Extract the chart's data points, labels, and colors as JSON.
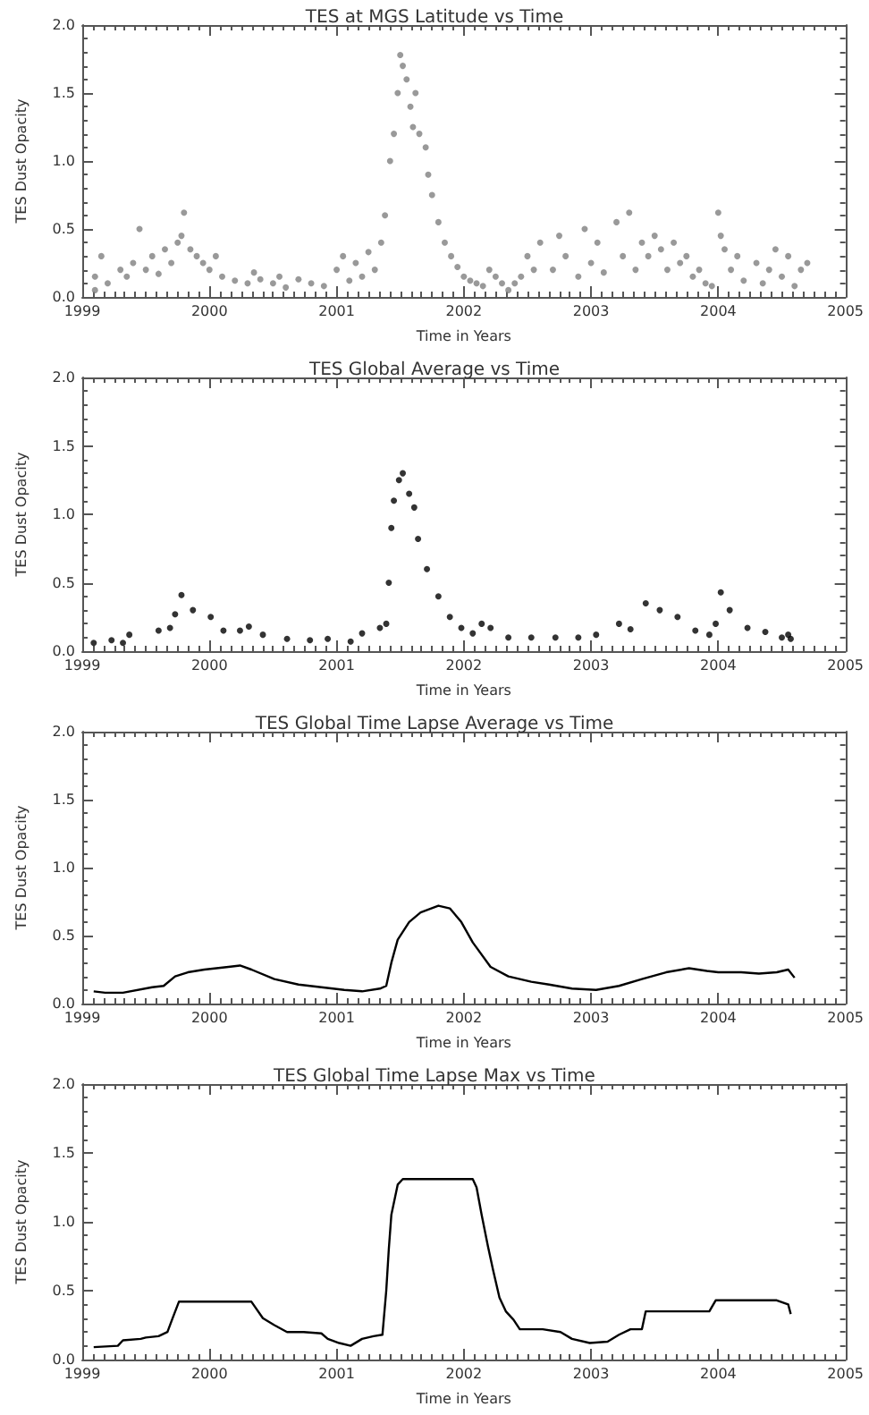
{
  "chart_data": [
    {
      "type": "scatter",
      "title": "TES at MGS Latitude vs Time",
      "xlabel": "Time in Years",
      "ylabel": "TES Dust Opacity",
      "xlim": [
        1999,
        2005
      ],
      "xticks": [
        1999,
        2000,
        2001,
        2002,
        2003,
        2004,
        2005
      ],
      "ylim": [
        0,
        2
      ],
      "yticks": [
        {
          "value": 0,
          "label": "0.0"
        },
        {
          "value": 0.5,
          "label": "0.5"
        },
        {
          "value": 1,
          "label": "1.0"
        },
        {
          "value": 1.5,
          "label": "1.5"
        },
        {
          "value": 2,
          "label": "2.0"
        }
      ],
      "marker": "circle",
      "series": [
        {
          "color": "#7f7f7f",
          "x": [
            1999.1,
            1999.1,
            1999.15,
            1999.2,
            1999.3,
            1999.35,
            1999.4,
            1999.45,
            1999.5,
            1999.55,
            1999.6,
            1999.65,
            1999.7,
            1999.75,
            1999.78,
            1999.8,
            1999.85,
            1999.9,
            1999.95,
            2000.0,
            2000.05,
            2000.1,
            2000.2,
            2000.3,
            2000.35,
            2000.4,
            2000.5,
            2000.55,
            2000.6,
            2000.7,
            2000.8,
            2000.9,
            2001.0,
            2001.05,
            2001.1,
            2001.15,
            2001.2,
            2001.25,
            2001.3,
            2001.35,
            2001.38,
            2001.42,
            2001.45,
            2001.48,
            2001.5,
            2001.52,
            2001.55,
            2001.58,
            2001.6,
            2001.62,
            2001.65,
            2001.7,
            2001.72,
            2001.75,
            2001.8,
            2001.85,
            2001.9,
            2001.95,
            2002.0,
            2002.05,
            2002.1,
            2002.15,
            2002.2,
            2002.25,
            2002.3,
            2002.35,
            2002.4,
            2002.45,
            2002.5,
            2002.55,
            2002.6,
            2002.7,
            2002.75,
            2002.8,
            2002.9,
            2002.95,
            2003.0,
            2003.05,
            2003.1,
            2003.2,
            2003.25,
            2003.3,
            2003.35,
            2003.4,
            2003.45,
            2003.5,
            2003.55,
            2003.6,
            2003.65,
            2003.7,
            2003.75,
            2003.8,
            2003.85,
            2003.9,
            2003.95,
            2004.0,
            2004.02,
            2004.05,
            2004.1,
            2004.15,
            2004.2,
            2004.3,
            2004.35,
            2004.4,
            2004.45,
            2004.5,
            2004.55,
            2004.6,
            2004.65,
            2004.7
          ],
          "values": [
            0.05,
            0.15,
            0.3,
            0.1,
            0.2,
            0.15,
            0.25,
            0.5,
            0.2,
            0.3,
            0.17,
            0.35,
            0.25,
            0.4,
            0.45,
            0.62,
            0.35,
            0.3,
            0.25,
            0.2,
            0.3,
            0.15,
            0.12,
            0.1,
            0.18,
            0.13,
            0.1,
            0.15,
            0.07,
            0.13,
            0.1,
            0.08,
            0.2,
            0.3,
            0.12,
            0.25,
            0.15,
            0.33,
            0.2,
            0.4,
            0.6,
            1.0,
            1.2,
            1.5,
            1.78,
            1.7,
            1.6,
            1.4,
            1.25,
            1.5,
            1.2,
            1.1,
            0.9,
            0.75,
            0.55,
            0.4,
            0.3,
            0.22,
            0.15,
            0.12,
            0.1,
            0.08,
            0.2,
            0.15,
            0.1,
            0.05,
            0.1,
            0.15,
            0.3,
            0.2,
            0.4,
            0.2,
            0.45,
            0.3,
            0.15,
            0.5,
            0.25,
            0.4,
            0.18,
            0.55,
            0.3,
            0.62,
            0.2,
            0.4,
            0.3,
            0.45,
            0.35,
            0.2,
            0.4,
            0.25,
            0.3,
            0.15,
            0.2,
            0.1,
            0.08,
            0.62,
            0.45,
            0.35,
            0.2,
            0.3,
            0.12,
            0.25,
            0.1,
            0.2,
            0.35,
            0.15,
            0.3,
            0.08,
            0.2,
            0.25
          ]
        }
      ]
    },
    {
      "type": "scatter",
      "title": "TES Global Average vs Time",
      "xlabel": "Time in Years",
      "ylabel": "TES Dust Opacity",
      "xlim": [
        1999,
        2005
      ],
      "xticks": [
        1999,
        2000,
        2001,
        2002,
        2003,
        2004,
        2005
      ],
      "ylim": [
        0,
        2
      ],
      "yticks": [
        {
          "value": 0,
          "label": "0.0"
        },
        {
          "value": 0.5,
          "label": "0.5"
        },
        {
          "value": 1,
          "label": "1.0"
        },
        {
          "value": 1.5,
          "label": "1.5"
        },
        {
          "value": 2,
          "label": "2.0"
        }
      ],
      "marker": "circle",
      "series": [
        {
          "color": "#000000",
          "x": [
            1999.09,
            1999.23,
            1999.32,
            1999.37,
            1999.6,
            1999.69,
            1999.73,
            1999.78,
            1999.87,
            2000.01,
            2000.11,
            2000.24,
            2000.31,
            2000.42,
            2000.61,
            2000.79,
            2000.93,
            2001.11,
            2001.2,
            2001.34,
            2001.39,
            2001.41,
            2001.43,
            2001.45,
            2001.49,
            2001.52,
            2001.57,
            2001.61,
            2001.64,
            2001.71,
            2001.8,
            2001.89,
            2001.98,
            2002.07,
            2002.14,
            2002.21,
            2002.35,
            2002.53,
            2002.72,
            2002.9,
            2003.04,
            2003.22,
            2003.31,
            2003.43,
            2003.54,
            2003.68,
            2003.82,
            2003.93,
            2003.98,
            2004.02,
            2004.09,
            2004.23,
            2004.37,
            2004.5,
            2004.55,
            2004.57
          ],
          "values": [
            0.06,
            0.08,
            0.06,
            0.12,
            0.15,
            0.17,
            0.27,
            0.41,
            0.3,
            0.25,
            0.15,
            0.15,
            0.18,
            0.12,
            0.09,
            0.08,
            0.09,
            0.07,
            0.13,
            0.17,
            0.2,
            0.5,
            0.9,
            1.1,
            1.25,
            1.3,
            1.15,
            1.05,
            0.82,
            0.6,
            0.4,
            0.25,
            0.17,
            0.13,
            0.2,
            0.17,
            0.1,
            0.1,
            0.1,
            0.1,
            0.12,
            0.2,
            0.16,
            0.35,
            0.3,
            0.25,
            0.15,
            0.12,
            0.2,
            0.43,
            0.3,
            0.17,
            0.14,
            0.1,
            0.12,
            0.09
          ]
        }
      ]
    },
    {
      "type": "line",
      "title": "TES Global Time Lapse Average vs Time",
      "xlabel": "Time in Years",
      "ylabel": "TES Dust Opacity",
      "xlim": [
        1999,
        2005
      ],
      "xticks": [
        1999,
        2000,
        2001,
        2002,
        2003,
        2004,
        2005
      ],
      "ylim": [
        0,
        2
      ],
      "yticks": [
        {
          "value": 0,
          "label": "0.0"
        },
        {
          "value": 0.5,
          "label": "0.5"
        },
        {
          "value": 1,
          "label": "1.0"
        },
        {
          "value": 1.5,
          "label": "1.5"
        },
        {
          "value": 2,
          "label": "2.0"
        }
      ],
      "marker": "none",
      "line_style": "solid",
      "series": [
        {
          "color": "#000000",
          "x": [
            1999.09,
            1999.18,
            1999.32,
            1999.55,
            1999.64,
            1999.73,
            1999.83,
            1999.96,
            2000.15,
            2000.24,
            2000.33,
            2000.51,
            2000.7,
            2000.88,
            2001.06,
            2001.2,
            2001.34,
            2001.39,
            2001.43,
            2001.48,
            2001.57,
            2001.66,
            2001.8,
            2001.89,
            2001.98,
            2002.07,
            2002.21,
            2002.35,
            2002.53,
            2002.67,
            2002.85,
            2003.04,
            2003.22,
            2003.4,
            2003.59,
            2003.77,
            2003.91,
            2004.0,
            2004.18,
            2004.32,
            2004.46,
            2004.55,
            2004.6
          ],
          "values": [
            0.09,
            0.08,
            0.08,
            0.12,
            0.13,
            0.2,
            0.23,
            0.25,
            0.27,
            0.28,
            0.25,
            0.18,
            0.14,
            0.12,
            0.1,
            0.09,
            0.11,
            0.13,
            0.3,
            0.47,
            0.6,
            0.67,
            0.72,
            0.7,
            0.6,
            0.45,
            0.27,
            0.2,
            0.16,
            0.14,
            0.11,
            0.1,
            0.13,
            0.18,
            0.23,
            0.26,
            0.24,
            0.23,
            0.23,
            0.22,
            0.23,
            0.25,
            0.19
          ]
        }
      ]
    },
    {
      "type": "line",
      "title": "TES Global Time Lapse Max vs Time",
      "xlabel": "Time in Years",
      "ylabel": "TES Dust Opacity",
      "xlim": [
        1999,
        2005
      ],
      "xticks": [
        1999,
        2000,
        2001,
        2002,
        2003,
        2004,
        2005
      ],
      "ylim": [
        0,
        2
      ],
      "yticks": [
        {
          "value": 0,
          "label": "0.0"
        },
        {
          "value": 0.5,
          "label": "0.5"
        },
        {
          "value": 1,
          "label": "1.0"
        },
        {
          "value": 1.5,
          "label": "1.5"
        },
        {
          "value": 2,
          "label": "2.0"
        }
      ],
      "marker": "none",
      "line_style": "solid",
      "series": [
        {
          "color": "#000000",
          "x": [
            1999.09,
            1999.28,
            1999.32,
            1999.46,
            1999.5,
            1999.6,
            1999.67,
            1999.71,
            1999.76,
            1999.92,
            2000.15,
            2000.33,
            2000.42,
            2000.51,
            2000.61,
            2000.74,
            2000.88,
            2000.93,
            2001.02,
            2001.11,
            2001.2,
            2001.29,
            2001.36,
            2001.39,
            2001.41,
            2001.43,
            2001.48,
            2001.52,
            2001.71,
            2001.89,
            2002.07,
            2002.1,
            2002.14,
            2002.19,
            2002.23,
            2002.28,
            2002.33,
            2002.39,
            2002.44,
            2002.62,
            2002.76,
            2002.85,
            2002.99,
            2003.13,
            2003.22,
            2003.31,
            2003.4,
            2003.43,
            2003.68,
            2003.93,
            2003.98,
            2004.18,
            2004.46,
            2004.55,
            2004.57
          ],
          "values": [
            0.09,
            0.1,
            0.14,
            0.15,
            0.16,
            0.17,
            0.2,
            0.3,
            0.42,
            0.42,
            0.42,
            0.42,
            0.3,
            0.25,
            0.2,
            0.2,
            0.19,
            0.15,
            0.12,
            0.1,
            0.15,
            0.17,
            0.18,
            0.5,
            0.8,
            1.05,
            1.27,
            1.31,
            1.31,
            1.31,
            1.31,
            1.25,
            1.05,
            0.82,
            0.65,
            0.45,
            0.35,
            0.29,
            0.22,
            0.22,
            0.2,
            0.15,
            0.12,
            0.13,
            0.18,
            0.22,
            0.22,
            0.35,
            0.35,
            0.35,
            0.43,
            0.43,
            0.43,
            0.4,
            0.33
          ]
        }
      ]
    }
  ]
}
